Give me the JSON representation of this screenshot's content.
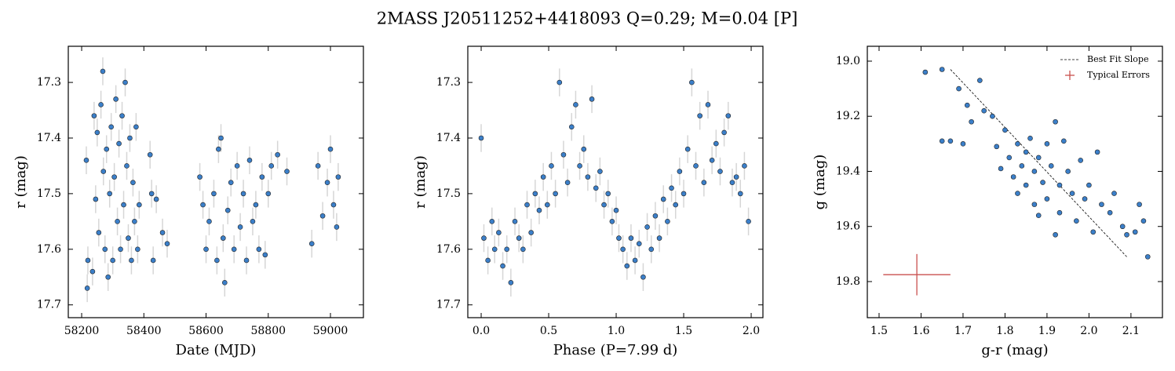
{
  "title": "2MASS J20511252+4418093  Q=0.29; M=0.04 [P]",
  "chart_data": [
    {
      "type": "scatter",
      "xlabel": "Date (MJD)",
      "ylabel": "r (mag)",
      "color": "#3b7fc9",
      "invert_y": true,
      "xlim": [
        58157,
        59106
      ],
      "ylim": [
        17.235,
        17.723
      ],
      "xticks": [
        58200,
        58400,
        58600,
        58800,
        59000
      ],
      "yticks": [
        17.3,
        17.4,
        17.5,
        17.6,
        17.7
      ],
      "yerr": 0.025,
      "x": [
        58215,
        58218,
        58220,
        58235,
        58240,
        58245,
        58250,
        58255,
        58262,
        58268,
        58270,
        58275,
        58280,
        58285,
        58290,
        58295,
        58300,
        58305,
        58310,
        58315,
        58320,
        58325,
        58330,
        58335,
        58340,
        58345,
        58350,
        58355,
        58360,
        58365,
        58370,
        58375,
        58380,
        58385,
        58420,
        58425,
        58430,
        58440,
        58460,
        58475,
        58580,
        58590,
        58600,
        58610,
        58625,
        58635,
        58640,
        58648,
        58655,
        58660,
        58670,
        58680,
        58690,
        58700,
        58710,
        58720,
        58730,
        58740,
        58750,
        58760,
        58770,
        58780,
        58790,
        58800,
        58810,
        58830,
        58860,
        58940,
        58960,
        58975,
        58990,
        59000,
        59010,
        59020,
        59025
      ],
      "values": [
        17.44,
        17.67,
        17.62,
        17.64,
        17.36,
        17.51,
        17.39,
        17.57,
        17.34,
        17.28,
        17.46,
        17.6,
        17.42,
        17.65,
        17.5,
        17.38,
        17.62,
        17.47,
        17.33,
        17.55,
        17.41,
        17.6,
        17.36,
        17.52,
        17.3,
        17.45,
        17.58,
        17.4,
        17.62,
        17.48,
        17.55,
        17.38,
        17.6,
        17.52,
        17.43,
        17.5,
        17.62,
        17.51,
        17.57,
        17.59,
        17.47,
        17.52,
        17.6,
        17.55,
        17.5,
        17.62,
        17.42,
        17.4,
        17.58,
        17.66,
        17.53,
        17.48,
        17.6,
        17.45,
        17.56,
        17.5,
        17.62,
        17.44,
        17.55,
        17.52,
        17.6,
        17.47,
        17.61,
        17.5,
        17.45,
        17.43,
        17.46,
        17.59,
        17.45,
        17.54,
        17.48,
        17.42,
        17.52,
        17.56,
        17.47
      ]
    },
    {
      "type": "scatter",
      "xlabel": "Phase (P=7.99 d)",
      "ylabel": "r (mag)",
      "color": "#3b7fc9",
      "invert_y": true,
      "xlim": [
        -0.099,
        2.087
      ],
      "ylim": [
        17.235,
        17.723
      ],
      "xticks": [
        {
          "value": 0,
          "label": "0.0"
        },
        0.5,
        {
          "value": 1,
          "label": "1.0"
        },
        1.5,
        {
          "value": 2,
          "label": "2.0"
        }
      ],
      "yticks": [
        17.3,
        17.4,
        17.5,
        17.6,
        17.7
      ],
      "yerr": 0.025,
      "x": [
        0.0,
        0.02,
        0.05,
        0.08,
        0.1,
        0.13,
        0.16,
        0.19,
        0.22,
        0.25,
        0.28,
        0.31,
        0.34,
        0.37,
        0.4,
        0.43,
        0.46,
        0.49,
        0.52,
        0.55,
        0.58,
        0.61,
        0.64,
        0.67,
        0.7,
        0.73,
        0.76,
        0.79,
        0.82,
        0.85,
        0.88,
        0.91,
        0.94,
        0.97,
        1.0,
        1.02,
        1.05,
        1.08,
        1.11,
        1.14,
        1.17,
        1.2,
        1.23,
        1.26,
        1.29,
        1.32,
        1.35,
        1.38,
        1.41,
        1.44,
        1.47,
        1.5,
        1.53,
        1.56,
        1.59,
        1.62,
        1.65,
        1.68,
        1.71,
        1.74,
        1.77,
        1.8,
        1.83,
        1.86,
        1.89,
        1.92,
        1.95,
        1.98
      ],
      "values": [
        17.4,
        17.58,
        17.62,
        17.55,
        17.6,
        17.57,
        17.63,
        17.6,
        17.66,
        17.55,
        17.58,
        17.6,
        17.52,
        17.57,
        17.5,
        17.53,
        17.47,
        17.52,
        17.45,
        17.5,
        17.3,
        17.43,
        17.48,
        17.38,
        17.34,
        17.45,
        17.42,
        17.47,
        17.33,
        17.49,
        17.46,
        17.52,
        17.5,
        17.55,
        17.53,
        17.58,
        17.6,
        17.63,
        17.58,
        17.62,
        17.59,
        17.65,
        17.56,
        17.6,
        17.54,
        17.58,
        17.51,
        17.55,
        17.49,
        17.52,
        17.46,
        17.5,
        17.42,
        17.3,
        17.45,
        17.36,
        17.48,
        17.34,
        17.44,
        17.41,
        17.46,
        17.39,
        17.36,
        17.48,
        17.47,
        17.5,
        17.45,
        17.55
      ]
    },
    {
      "type": "scatter",
      "xlabel": "g-r (mag)",
      "ylabel": "g (mag)",
      "color": "#3b7fc9",
      "invert_y": true,
      "xlim": [
        1.472,
        2.175
      ],
      "ylim": [
        18.946,
        19.931
      ],
      "xticks": [
        1.5,
        1.6,
        1.7,
        1.8,
        1.9,
        {
          "value": 2,
          "label": "2.0"
        },
        2.1
      ],
      "yticks": [
        {
          "value": 19,
          "label": "19.0"
        },
        19.2,
        19.4,
        19.6,
        19.8
      ],
      "x": [
        1.61,
        1.65,
        1.65,
        1.67,
        1.69,
        1.7,
        1.71,
        1.72,
        1.74,
        1.75,
        1.77,
        1.78,
        1.79,
        1.8,
        1.81,
        1.82,
        1.83,
        1.83,
        1.84,
        1.85,
        1.85,
        1.86,
        1.87,
        1.87,
        1.88,
        1.89,
        1.9,
        1.9,
        1.91,
        1.92,
        1.93,
        1.93,
        1.94,
        1.95,
        1.96,
        1.97,
        1.98,
        1.99,
        2.0,
        2.01,
        2.02,
        2.03,
        2.05,
        2.06,
        2.08,
        2.09,
        2.12,
        2.11,
        2.13,
        2.14,
        1.92,
        1.88
      ],
      "values": [
        19.04,
        19.03,
        19.29,
        19.29,
        19.1,
        19.3,
        19.16,
        19.22,
        19.07,
        19.18,
        19.2,
        19.31,
        19.39,
        19.25,
        19.35,
        19.42,
        19.3,
        19.48,
        19.38,
        19.45,
        19.33,
        19.28,
        19.4,
        19.52,
        19.35,
        19.44,
        19.3,
        19.5,
        19.38,
        19.22,
        19.45,
        19.55,
        19.29,
        19.4,
        19.48,
        19.58,
        19.36,
        19.5,
        19.45,
        19.62,
        19.33,
        19.52,
        19.55,
        19.48,
        19.6,
        19.63,
        19.52,
        19.62,
        19.58,
        19.71,
        19.63,
        19.56
      ],
      "fit_line": {
        "name": "Best Fit Slope",
        "color": "#000000",
        "x": [
          1.67,
          2.09
        ],
        "values": [
          19.03,
          19.71
        ]
      },
      "typical_errors": {
        "name": "Typical Errors",
        "color": "#c9504f",
        "x": 1.59,
        "value": 19.775,
        "xerr": 0.08,
        "yerr": 0.075
      }
    }
  ]
}
